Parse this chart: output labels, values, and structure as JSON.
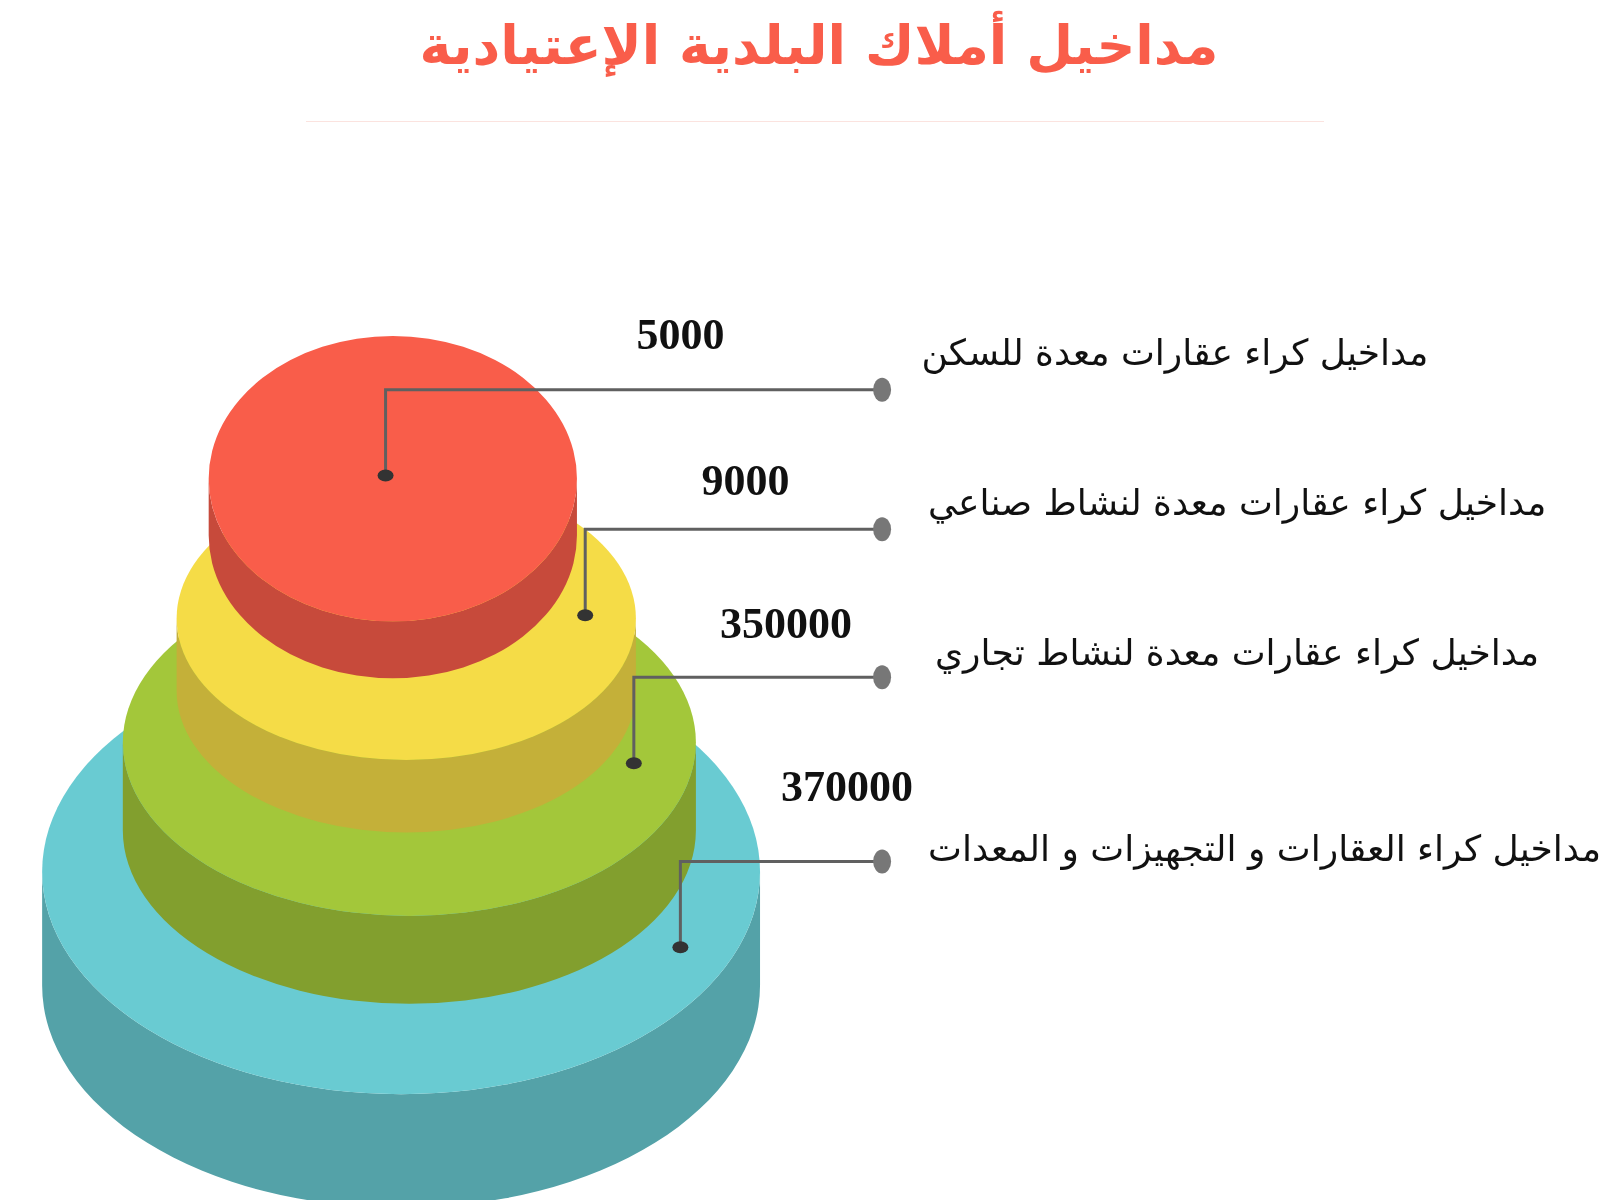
{
  "chart_data": {
    "type": "other",
    "title": "مداخيل أملاك البلدية الإعتيادية",
    "categories": [
      "مداخيل كراء عقارات معدة للسكن",
      "مداخيل كراء عقارات معدة لنشاط صناعي",
      "مداخيل كراء عقارات معدة لنشاط تجاري",
      "مداخيل كراء العقارات و التجهيزات و المعدات"
    ],
    "values": [
      5000,
      9000,
      350000,
      370000
    ],
    "colors": [
      "#f95d4a",
      "#f5dc47",
      "#a3c73a",
      "#69cbd2"
    ],
    "data_labels": true
  }
}
